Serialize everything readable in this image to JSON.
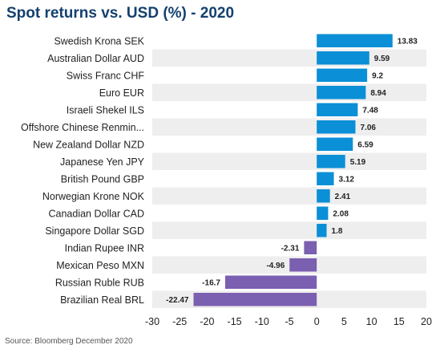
{
  "title": "Spot returns vs. USD (%) - 2020",
  "source": "Source: Bloomberg December 2020",
  "colors": {
    "positive": "#0b8fd6",
    "negative": "#7b5fb0",
    "band": "#eeeeee",
    "title": "#14406e"
  },
  "chart_data": {
    "type": "bar",
    "orientation": "horizontal",
    "title": "Spot returns vs. USD (%) - 2020",
    "categories": [
      "Swedish Krona SEK",
      "Australian Dollar AUD",
      "Swiss Franc CHF",
      "Euro EUR",
      "Israeli Shekel ILS",
      "Offshore Chinese Renmin...",
      "New Zealand Dollar NZD",
      "Japanese Yen JPY",
      "British Pound GBP",
      "Norwegian Krone NOK",
      "Canadian Dollar CAD",
      "Singapore Dollar SGD",
      "Indian Rupee INR",
      "Mexican Peso MXN",
      "Russian Ruble RUB",
      "Brazilian Real BRL"
    ],
    "values": [
      13.83,
      9.59,
      9.2,
      8.94,
      7.48,
      7.06,
      6.59,
      5.19,
      3.12,
      2.41,
      2.08,
      1.8,
      -2.31,
      -4.96,
      -16.7,
      -22.47
    ],
    "value_labels": [
      "13.83",
      "9.59",
      "9.2",
      "8.94",
      "7.48",
      "7.06",
      "6.59",
      "5.19",
      "3.12",
      "2.41",
      "2.08",
      "1.8",
      "-2.31",
      "-4.96",
      "-16.7",
      "-22.47"
    ],
    "xlim": [
      -30,
      20
    ],
    "xticks": [
      -30,
      -25,
      -20,
      -15,
      -10,
      -5,
      0,
      5,
      10,
      15,
      20
    ],
    "grid": false,
    "legend": "none"
  }
}
